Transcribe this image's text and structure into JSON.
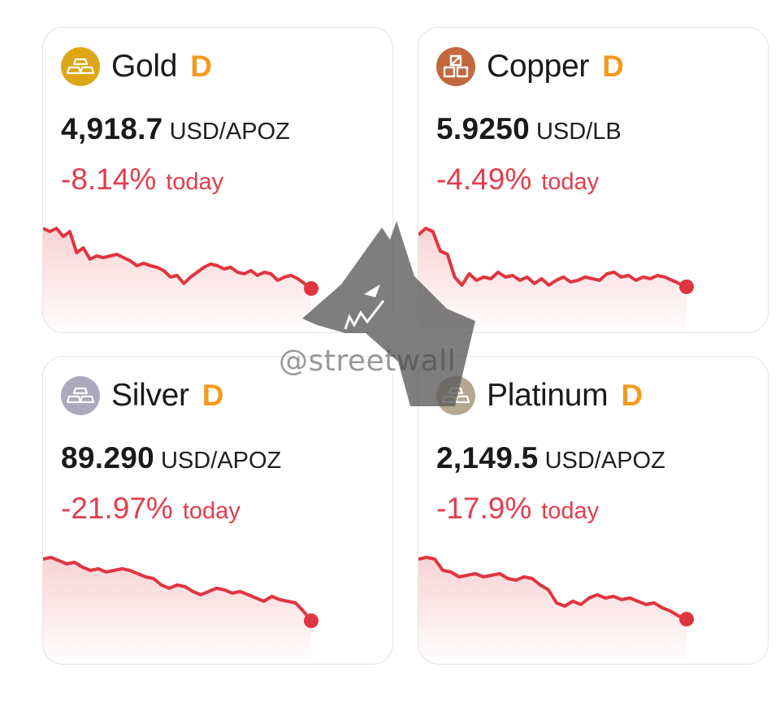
{
  "cards": [
    {
      "name": "Gold",
      "badge": "D",
      "price": "4,918.7",
      "unit": "USD/APOZ",
      "change": "-8.14%",
      "period": "today",
      "icon": "gold-bars-icon",
      "icon_color": "#dfa614",
      "badge_color": "#f39a1d",
      "trend": [
        0.02,
        0.06,
        0.02,
        0.12,
        0.06,
        0.32,
        0.26,
        0.4,
        0.36,
        0.38,
        0.36,
        0.34,
        0.38,
        0.42,
        0.48,
        0.45,
        0.48,
        0.5,
        0.54,
        0.62,
        0.6,
        0.7,
        0.62,
        0.56,
        0.5,
        0.46,
        0.48,
        0.52,
        0.5,
        0.56,
        0.58,
        0.54,
        0.6,
        0.56,
        0.58,
        0.66,
        0.62,
        0.6,
        0.64,
        0.7,
        0.76
      ]
    },
    {
      "name": "Copper",
      "badge": "D",
      "price": "5.9250",
      "unit": "USD/LB",
      "change": "-4.49%",
      "period": "today",
      "icon": "copper-bars-icon",
      "icon_color": "#c4663e",
      "badge_color": "#f39a1d",
      "trend": [
        0.1,
        0.02,
        0.06,
        0.3,
        0.34,
        0.62,
        0.72,
        0.58,
        0.66,
        0.62,
        0.64,
        0.56,
        0.62,
        0.6,
        0.66,
        0.62,
        0.7,
        0.64,
        0.72,
        0.66,
        0.62,
        0.68,
        0.66,
        0.62,
        0.64,
        0.66,
        0.58,
        0.56,
        0.62,
        0.6,
        0.66,
        0.62,
        0.64,
        0.6,
        0.62,
        0.66,
        0.7,
        0.74
      ]
    },
    {
      "name": "Silver",
      "badge": "D",
      "price": "89.290",
      "unit": "USD/APOZ",
      "change": "-21.97%",
      "period": "today",
      "icon": "silver-bars-icon",
      "icon_color": "#aaa9bd",
      "badge_color": "#f39a1d",
      "trend": [
        0.04,
        0.02,
        0.06,
        0.1,
        0.08,
        0.14,
        0.18,
        0.16,
        0.2,
        0.18,
        0.16,
        0.18,
        0.22,
        0.26,
        0.28,
        0.36,
        0.4,
        0.36,
        0.38,
        0.44,
        0.48,
        0.44,
        0.4,
        0.42,
        0.46,
        0.44,
        0.48,
        0.52,
        0.56,
        0.5,
        0.54,
        0.56,
        0.58,
        0.68,
        0.8
      ]
    },
    {
      "name": "Platinum",
      "badge": "D",
      "price": "2,149.5",
      "unit": "USD/APOZ",
      "change": "-17.9%",
      "period": "today",
      "icon": "platinum-bars-icon",
      "icon_color": "#b5a891",
      "badge_color": "#f39a1d",
      "trend": [
        0.04,
        0.02,
        0.04,
        0.18,
        0.2,
        0.26,
        0.24,
        0.22,
        0.26,
        0.24,
        0.22,
        0.28,
        0.3,
        0.26,
        0.28,
        0.36,
        0.42,
        0.58,
        0.62,
        0.56,
        0.6,
        0.52,
        0.48,
        0.52,
        0.5,
        0.54,
        0.52,
        0.56,
        0.6,
        0.58,
        0.64,
        0.68,
        0.74,
        0.78
      ]
    }
  ],
  "watermark": {
    "text": "@streetwall",
    "icon": "dog-head-logo-icon"
  },
  "colors": {
    "negative": "#e23d4e",
    "line": "#e0353f"
  }
}
